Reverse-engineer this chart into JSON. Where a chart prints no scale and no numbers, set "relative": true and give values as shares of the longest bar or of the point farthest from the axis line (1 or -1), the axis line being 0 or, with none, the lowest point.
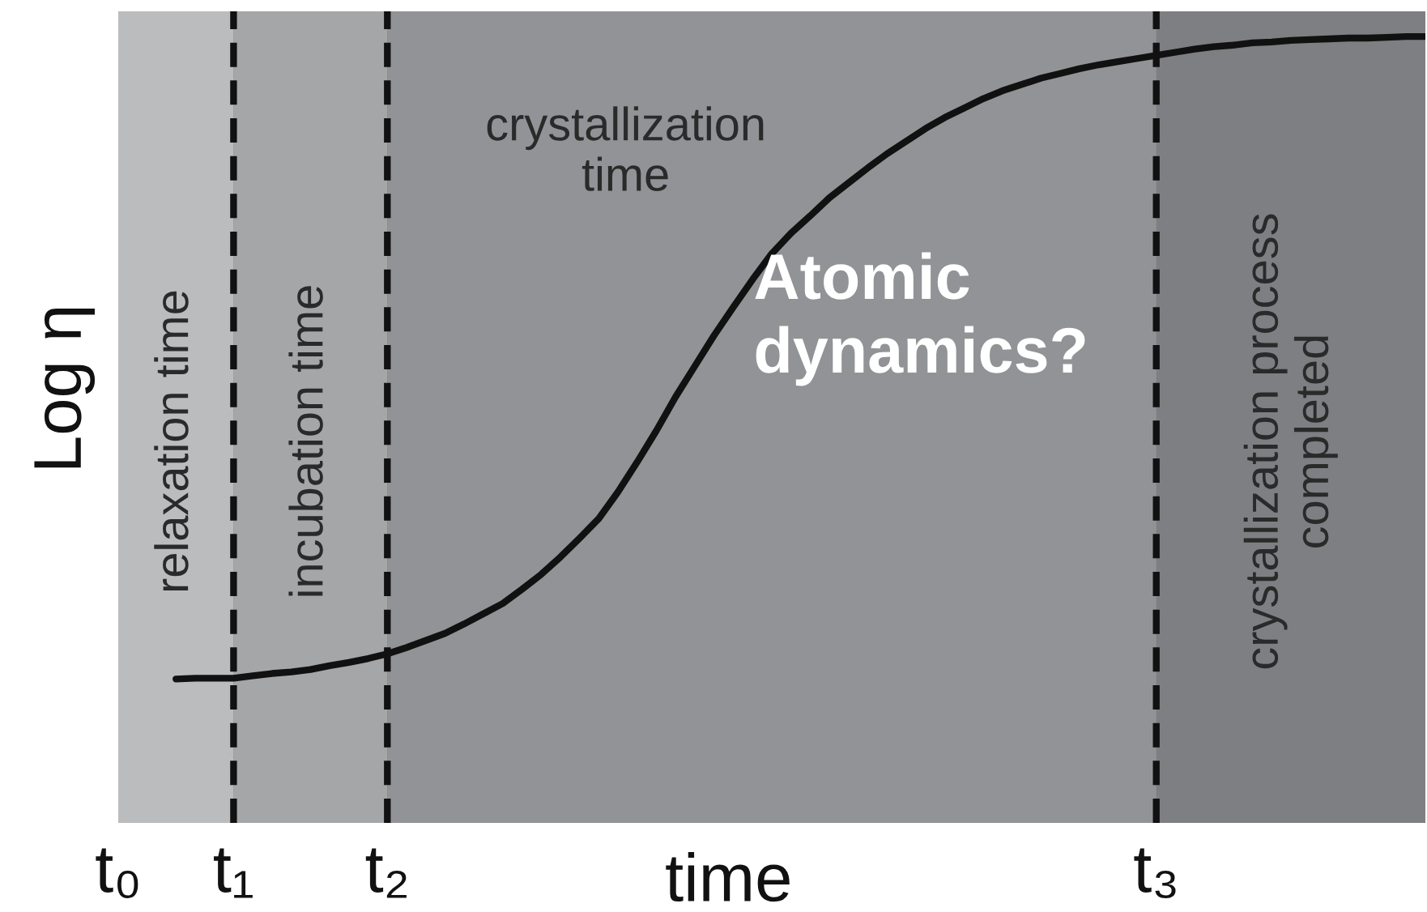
{
  "chart_data": {
    "type": "line",
    "xlabel": "time",
    "ylabel": "Log η",
    "relative": true,
    "marker": "none",
    "line_style": "solid",
    "grid": false,
    "tick_labels": "x",
    "categories": [
      "t₀",
      null,
      null,
      null,
      null,
      null,
      "t₁",
      null,
      null,
      null,
      null,
      null,
      null,
      null,
      "t₂",
      null,
      null,
      null,
      null,
      null,
      null,
      null,
      null,
      null,
      null,
      null,
      null,
      null,
      null,
      null,
      null,
      null,
      null,
      null,
      null,
      null,
      null,
      null,
      null,
      null,
      null,
      null,
      null,
      null,
      null,
      null,
      null,
      null,
      null,
      null,
      null,
      null,
      null,
      null,
      "t₃",
      null,
      null,
      null,
      null,
      null,
      null,
      null,
      null,
      null,
      null,
      null,
      null,
      null,
      null
    ],
    "series": [
      {
        "color": "#111111",
        "values": [
          null,
          null,
          null,
          0.183,
          0.184,
          0.184,
          0.184,
          0.187,
          0.19,
          0.192,
          0.195,
          0.2,
          0.204,
          0.209,
          0.215,
          0.223,
          0.232,
          0.241,
          0.253,
          0.266,
          0.279,
          0.297,
          0.316,
          0.338,
          0.362,
          0.387,
          0.421,
          0.459,
          0.499,
          0.542,
          0.581,
          0.62,
          0.656,
          0.691,
          0.724,
          0.75,
          0.772,
          0.795,
          0.814,
          0.833,
          0.851,
          0.867,
          0.883,
          0.897,
          0.909,
          0.921,
          0.931,
          0.939,
          0.947,
          0.953,
          0.959,
          0.964,
          0.968,
          0.972,
          0.976,
          0.98,
          0.984,
          0.987,
          0.989,
          0.992,
          0.993,
          0.995,
          0.996,
          0.997,
          0.998,
          0.998,
          0.999,
          1.0,
          1.0
        ]
      }
    ],
    "ref_lines": [
      {
        "axis": "x",
        "value": "t₁",
        "color": "#111111",
        "line_style": "dashed"
      },
      {
        "axis": "x",
        "value": "t₂",
        "color": "#111111",
        "line_style": "dashed"
      },
      {
        "axis": "x",
        "value": "t₃",
        "color": "#111111",
        "line_style": "dashed"
      }
    ],
    "bands": [
      {
        "axis": "x",
        "from": "t₀",
        "to": "t₁",
        "label": "relaxation time",
        "color": "#bbbcbe"
      },
      {
        "axis": "x",
        "from": "t₁",
        "to": "t₂",
        "label": "incubation time",
        "color": "#a5a6a8"
      },
      {
        "axis": "x",
        "from": "t₂",
        "to": "t₃",
        "label": "crystallization\ntime",
        "color": "#929396"
      }
    ],
    "annotations": [
      "Atomic\ndynamics?",
      "crystallization process\ncompleted"
    ]
  }
}
